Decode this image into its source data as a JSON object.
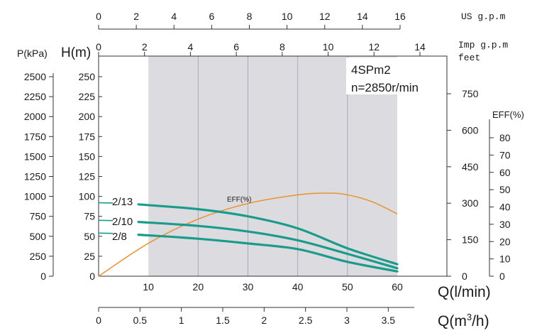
{
  "chart_data": {
    "type": "line",
    "model": "4SPm2",
    "speed": "n=2850r/min",
    "x": {
      "label": "Q(l/min)",
      "range": [
        0,
        60
      ],
      "ticks": [
        10,
        20,
        30,
        40,
        50,
        60
      ],
      "tick_labels": [
        "10",
        "20",
        "30",
        "40",
        "50",
        "60"
      ],
      "shaded_range": [
        10,
        60
      ]
    },
    "y_head": {
      "label": "H(m)",
      "range": [
        0,
        250
      ],
      "ticks": [
        0,
        25,
        50,
        75,
        100,
        125,
        150,
        175,
        200,
        225,
        250
      ],
      "tick_labels": [
        "0",
        "25",
        "50",
        "75",
        "100",
        "125",
        "150",
        "175",
        "200",
        "225",
        "250"
      ]
    },
    "y_pressure": {
      "label": "P(kPa)",
      "ticks": [
        0,
        250,
        500,
        750,
        1000,
        1250,
        1500,
        1750,
        2000,
        2250,
        2500
      ],
      "tick_labels": [
        "0",
        "250",
        "500",
        "750",
        "1000",
        "1250",
        "1500",
        "1750",
        "2000",
        "2250",
        "2500"
      ]
    },
    "y_feet": {
      "label": "feet",
      "ticks": [
        0,
        150,
        300,
        450,
        600,
        750
      ],
      "tick_labels": [
        "0",
        "150",
        "300",
        "450",
        "600",
        "750"
      ]
    },
    "y_eff": {
      "label": "EFF(%)",
      "ticks": [
        0,
        10,
        20,
        30,
        40,
        50,
        60,
        70,
        80
      ],
      "tick_labels": [
        "0",
        "10",
        "20",
        "30",
        "40",
        "50",
        "60",
        "70",
        "80"
      ]
    },
    "x_us": {
      "label": "US g.p.m",
      "ticks": [
        0,
        2,
        4,
        6,
        8,
        10,
        12,
        14,
        16
      ],
      "tick_labels": [
        "0",
        "2",
        "4",
        "6",
        "8",
        "10",
        "12",
        "14",
        "16"
      ]
    },
    "x_imp": {
      "label": "Imp g.p.m",
      "ticks": [
        0,
        2,
        4,
        6,
        8,
        10,
        12,
        14
      ],
      "tick_labels": [
        "0",
        "2",
        "4",
        "6",
        "8",
        "10",
        "12",
        "14"
      ]
    },
    "x_m3h": {
      "label_main": "Q(m",
      "label_sup": "3",
      "label_end": "/h)",
      "ticks": [
        0,
        0.5,
        1,
        1.5,
        2,
        2.5,
        3,
        3.5
      ],
      "tick_labels": [
        "0",
        "0.5",
        "1",
        "1.5",
        "2",
        "2.5",
        "3",
        "3.5"
      ]
    },
    "series": [
      {
        "name": "2/13",
        "color": "#1a9b8c",
        "x": [
          0,
          8,
          20,
          30,
          40,
          50,
          60
        ],
        "y": [
          92,
          90,
          84,
          75,
          60,
          35,
          15
        ]
      },
      {
        "name": "2/10",
        "color": "#1a9b8c",
        "x": [
          0,
          8,
          20,
          30,
          40,
          50,
          60
        ],
        "y": [
          70,
          68,
          63,
          56,
          45,
          28,
          10
        ]
      },
      {
        "name": "2/8",
        "color": "#1a9b8c",
        "x": [
          0,
          8,
          20,
          30,
          40,
          50,
          60
        ],
        "y": [
          54,
          52,
          47,
          41,
          34,
          18,
          6
        ]
      }
    ],
    "efficiency": {
      "label": "EFF(%)",
      "color": "#e8963a",
      "x": [
        0,
        10,
        20,
        30,
        40,
        46,
        50,
        55,
        60
      ],
      "eff": [
        0,
        19,
        33,
        42,
        47,
        48,
        47,
        43,
        36
      ]
    }
  }
}
